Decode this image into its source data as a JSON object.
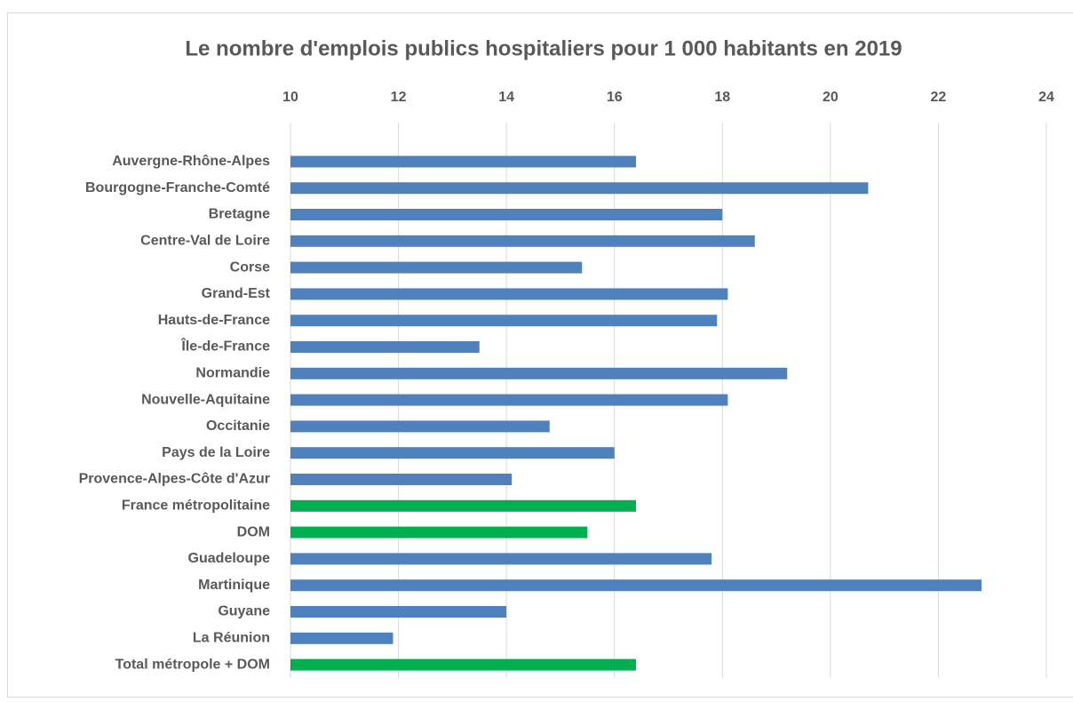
{
  "chart_data": {
    "type": "bar",
    "orientation": "horizontal",
    "title": "Le nombre d'emplois publics hospitaliers pour 1 000 habitants en 2019",
    "categories": [
      "Auvergne-Rhône-Alpes",
      "Bourgogne-Franche-Comté",
      "Bretagne",
      "Centre-Val de Loire",
      "Corse",
      "Grand-Est",
      "Hauts-de-France",
      "Île-de-France",
      "Normandie",
      "Nouvelle-Aquitaine",
      "Occitanie",
      "Pays de la Loire",
      "Provence-Alpes-Côte d'Azur",
      "France métropolitaine",
      "DOM",
      "Guadeloupe",
      "Martinique",
      "Guyane",
      "La Réunion",
      "Total métropole + DOM"
    ],
    "values": [
      16.4,
      20.7,
      18.0,
      18.6,
      15.4,
      18.1,
      17.9,
      13.5,
      19.2,
      18.1,
      14.8,
      16.0,
      14.1,
      16.4,
      15.5,
      17.8,
      22.8,
      14.0,
      11.9,
      16.4
    ],
    "colors": [
      "#4f81bd",
      "#4f81bd",
      "#4f81bd",
      "#4f81bd",
      "#4f81bd",
      "#4f81bd",
      "#4f81bd",
      "#4f81bd",
      "#4f81bd",
      "#4f81bd",
      "#4f81bd",
      "#4f81bd",
      "#4f81bd",
      "#00b050",
      "#00b050",
      "#4f81bd",
      "#4f81bd",
      "#4f81bd",
      "#4f81bd",
      "#00b050"
    ],
    "xlim": [
      10,
      24
    ],
    "xticks": [
      10,
      12,
      14,
      16,
      18,
      20,
      22,
      24
    ],
    "grid": true,
    "x_axis_position": "top"
  }
}
